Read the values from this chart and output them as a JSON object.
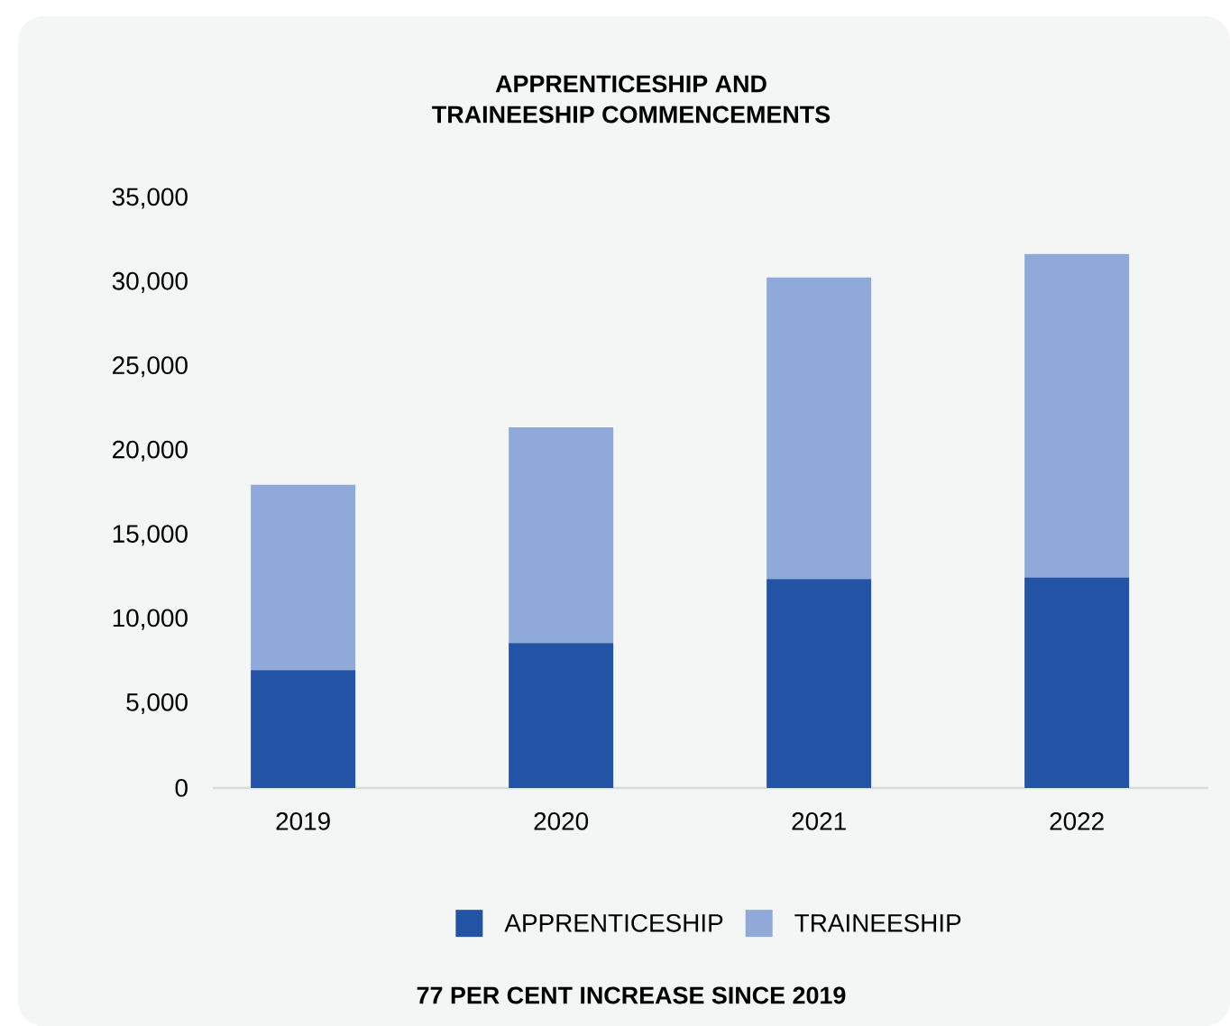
{
  "chart_data": {
    "type": "bar",
    "stacked": true,
    "title": "APPRENTICESHIP AND\nTRAINEESHIP COMMENCEMENTS",
    "categories": [
      "2019",
      "2020",
      "2021",
      "2022"
    ],
    "series": [
      {
        "name": "APPRENTICESHIP",
        "color": "#2353a5",
        "values": [
          7000,
          8600,
          12400,
          12500
        ]
      },
      {
        "name": "TRAINEESHIP",
        "color": "#8faad8",
        "values": [
          11000,
          12800,
          17900,
          19200
        ]
      }
    ],
    "ylim": [
      0,
      35000
    ],
    "yticks": [
      {
        "value": 0,
        "label": "0"
      },
      {
        "value": 5000,
        "label": "5,000"
      },
      {
        "value": 10000,
        "label": "10,000"
      },
      {
        "value": 15000,
        "label": "15,000"
      },
      {
        "value": 20000,
        "label": "20,000"
      },
      {
        "value": 25000,
        "label": "25,000"
      },
      {
        "value": 30000,
        "label": "30,000"
      },
      {
        "value": 35000,
        "label": "35,000"
      }
    ],
    "legend": "bottom",
    "annotations": [
      "77 PER CENT INCREASE SINCE 2019"
    ]
  }
}
